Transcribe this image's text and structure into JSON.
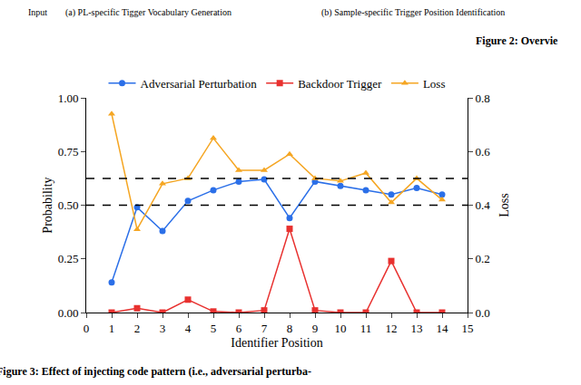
{
  "chart_data": {
    "type": "line",
    "annotations": [
      "Input",
      "(a) PL-specific Tigger Vocabulary Generation",
      "(b) Sample-specific Trigger Position Identification",
      "Figure 2: Overvie",
      "Figure 3: Effect of injecting code pattern (i.e., adversarial perturba-"
    ],
    "x_label": "Identifier Position",
    "y_label": "Probability",
    "y2_label": "Loss",
    "x": [
      1,
      2,
      3,
      4,
      5,
      6,
      7,
      8,
      9,
      10,
      11,
      12,
      13,
      14
    ],
    "series": [
      {
        "name": "Adversarial Perturbation",
        "color": "#2b6fe8",
        "marker": "circle",
        "values": [
          0.14,
          0.49,
          0.38,
          0.52,
          0.57,
          0.61,
          0.62,
          0.44,
          0.61,
          0.59,
          0.57,
          0.55,
          0.58,
          0.55
        ]
      },
      {
        "name": "Backdoor Trigger",
        "color": "#e8312f",
        "marker": "square",
        "values": [
          0.0,
          0.02,
          0.0,
          0.06,
          0.005,
          0.0,
          0.01,
          0.39,
          0.01,
          0.0,
          0.0,
          0.24,
          0.0,
          0.0
        ]
      },
      {
        "name": "Loss",
        "color": "#f5a623",
        "marker": "triangle-up",
        "axis": "y2",
        "values": [
          0.74,
          0.31,
          0.48,
          0.5,
          0.65,
          0.53,
          0.53,
          0.59,
          0.5,
          0.49,
          0.52,
          0.41,
          0.5,
          0.42
        ]
      }
    ],
    "hlines": [
      0.625,
      0.5
    ],
    "xlim": [
      0,
      15
    ],
    "xticks": [
      0,
      1,
      2,
      3,
      4,
      5,
      6,
      7,
      8,
      9,
      10,
      11,
      12,
      13,
      14,
      15
    ],
    "ylim": [
      0,
      1
    ],
    "yticks": [
      {
        "value": 0,
        "label": "0.00"
      },
      {
        "value": 0.25,
        "label": "0.25"
      },
      {
        "value": 0.5,
        "label": "0.50"
      },
      {
        "value": 0.75,
        "label": "0.75"
      },
      {
        "value": 1,
        "label": "1.00"
      }
    ],
    "y2lim": [
      0,
      0.8
    ],
    "y2ticks": [
      {
        "value": 0,
        "label": "0.0"
      },
      {
        "value": 0.2,
        "label": "0.2"
      },
      {
        "value": 0.4,
        "label": "0.4"
      },
      {
        "value": 0.6,
        "label": "0.6"
      },
      {
        "value": 0.8,
        "label": "0.8"
      }
    ],
    "grid": false,
    "legend": "top"
  }
}
